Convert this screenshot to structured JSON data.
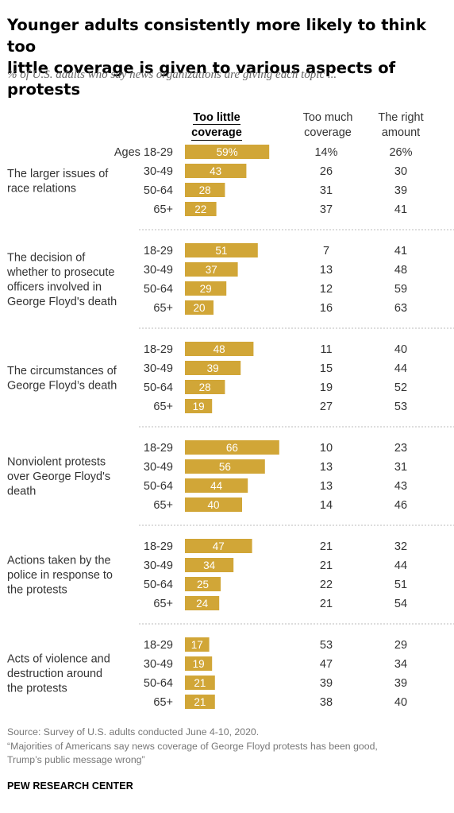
{
  "title_line1": "Younger adults consistently more likely to think too",
  "title_line2": "little coverage is given to various aspects of protests",
  "subtitle": "% of U.S. adults who say news organizations are giving each topic ...",
  "columns": {
    "too_little_line1": "Too little",
    "too_little_line2": "coverage",
    "too_much_line1": "Too much",
    "too_much_line2": "coverage",
    "right_line1": "The right",
    "right_line2": "amount"
  },
  "source_line1": "Source: Survey of U.S. adults conducted June 4-10, 2020.",
  "source_line2": "“Majorities of Americans say news coverage of George Floyd protests has been good,",
  "source_line3": "Trump’s public message wrong”",
  "logo": "PEW RESEARCH CENTER",
  "colors": {
    "bar": "#d1a637",
    "bar_text": "#ffffff",
    "divider": "#bbbbbb"
  },
  "chart_data": {
    "type": "bar",
    "orientation": "horizontal",
    "xlim": [
      0,
      100
    ],
    "first_label_prefix": "Ages ",
    "first_value_suffix": "%",
    "groups": [
      {
        "topic": [
          "The larger issues of",
          "race relations"
        ],
        "rows": [
          {
            "age": "18-29",
            "too_little": 59,
            "too_much": "14%",
            "right": "26%"
          },
          {
            "age": "30-49",
            "too_little": 43,
            "too_much": "26",
            "right": "30"
          },
          {
            "age": "50-64",
            "too_little": 28,
            "too_much": "31",
            "right": "39"
          },
          {
            "age": "65+",
            "too_little": 22,
            "too_much": "37",
            "right": "41"
          }
        ]
      },
      {
        "topic": [
          "The decision of",
          "whether to prosecute",
          "officers involved in",
          "George Floyd's death"
        ],
        "rows": [
          {
            "age": "18-29",
            "too_little": 51,
            "too_much": "7",
            "right": "41"
          },
          {
            "age": "30-49",
            "too_little": 37,
            "too_much": "13",
            "right": "48"
          },
          {
            "age": "50-64",
            "too_little": 29,
            "too_much": "12",
            "right": "59"
          },
          {
            "age": "65+",
            "too_little": 20,
            "too_much": "16",
            "right": "63"
          }
        ]
      },
      {
        "topic": [
          "The circumstances of",
          "George Floyd’s death"
        ],
        "rows": [
          {
            "age": "18-29",
            "too_little": 48,
            "too_much": "11",
            "right": "40"
          },
          {
            "age": "30-49",
            "too_little": 39,
            "too_much": "15",
            "right": "44"
          },
          {
            "age": "50-64",
            "too_little": 28,
            "too_much": "19",
            "right": "52"
          },
          {
            "age": "65+",
            "too_little": 19,
            "too_much": "27",
            "right": "53"
          }
        ]
      },
      {
        "topic": [
          "Nonviolent protests",
          "over George Floyd's",
          "death"
        ],
        "rows": [
          {
            "age": "18-29",
            "too_little": 66,
            "too_much": "10",
            "right": "23"
          },
          {
            "age": "30-49",
            "too_little": 56,
            "too_much": "13",
            "right": "31"
          },
          {
            "age": "50-64",
            "too_little": 44,
            "too_much": "13",
            "right": "43"
          },
          {
            "age": "65+",
            "too_little": 40,
            "too_much": "14",
            "right": "46"
          }
        ]
      },
      {
        "topic": [
          "Actions taken by the",
          "police in response to",
          "the protests"
        ],
        "rows": [
          {
            "age": "18-29",
            "too_little": 47,
            "too_much": "21",
            "right": "32"
          },
          {
            "age": "30-49",
            "too_little": 34,
            "too_much": "21",
            "right": "44"
          },
          {
            "age": "50-64",
            "too_little": 25,
            "too_much": "22",
            "right": "51"
          },
          {
            "age": "65+",
            "too_little": 24,
            "too_much": "21",
            "right": "54"
          }
        ]
      },
      {
        "topic": [
          "Acts of violence and",
          "destruction around",
          "the protests"
        ],
        "rows": [
          {
            "age": "18-29",
            "too_little": 17,
            "too_much": "53",
            "right": "29"
          },
          {
            "age": "30-49",
            "too_little": 19,
            "too_much": "47",
            "right": "34"
          },
          {
            "age": "50-64",
            "too_little": 21,
            "too_much": "39",
            "right": "39"
          },
          {
            "age": "65+",
            "too_little": 21,
            "too_much": "38",
            "right": "40"
          }
        ]
      }
    ]
  }
}
